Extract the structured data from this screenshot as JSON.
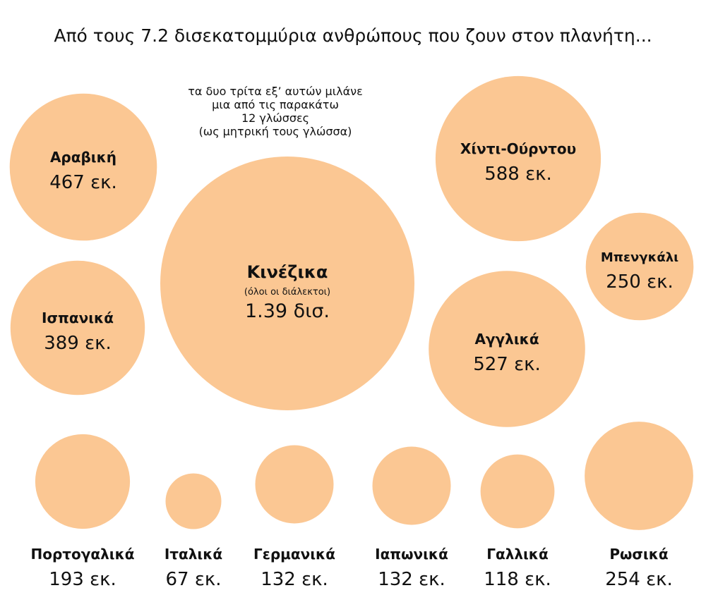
{
  "chart_data": {
    "type": "bubble",
    "title": "Από τους 7.2 δισεκατομμύρια ανθρώπους που ζουν στον πλανήτη...",
    "annotation": [
      "τα δυο τρίτα εξ’ αυτών μιλάνε",
      "μια από τις παρακάτω",
      "12 γλώσσες",
      "(ως μητρική τους γλώσσα)"
    ],
    "color": "#fbc793",
    "items": [
      {
        "id": "chinese",
        "label": "Κινέζικα",
        "sublabel": "(όλοι οι διάλεκτοι)",
        "value_text": "1.39 δισ.",
        "value": 1390
      },
      {
        "id": "hindi-urdu",
        "label": "Χίντι-Ούρντου",
        "value_text": "588 εκ.",
        "value": 588
      },
      {
        "id": "english",
        "label": "Αγγλικά",
        "value_text": "527 εκ.",
        "value": 527
      },
      {
        "id": "arabic",
        "label": "Αραβική",
        "value_text": "467 εκ.",
        "value": 467
      },
      {
        "id": "spanish",
        "label": "Ισπανικά",
        "value_text": "389 εκ.",
        "value": 389
      },
      {
        "id": "russian",
        "label": "Ρωσικά",
        "value_text": "254 εκ.",
        "value": 254
      },
      {
        "id": "bengali",
        "label": "Μπενγκάλι",
        "value_text": "250 εκ.",
        "value": 250
      },
      {
        "id": "portuguese",
        "label": "Πορτογαλικά",
        "value_text": "193 εκ.",
        "value": 193
      },
      {
        "id": "german",
        "label": "Γερμανικά",
        "value_text": "132 εκ.",
        "value": 132
      },
      {
        "id": "japanese",
        "label": "Ιαπωνικά",
        "value_text": "132 εκ.",
        "value": 132
      },
      {
        "id": "french",
        "label": "Γαλλικά",
        "value_text": "118 εκ.",
        "value": 118
      },
      {
        "id": "italian",
        "label": "Ιταλικά",
        "value_text": "67 εκ.",
        "value": 67
      }
    ]
  }
}
